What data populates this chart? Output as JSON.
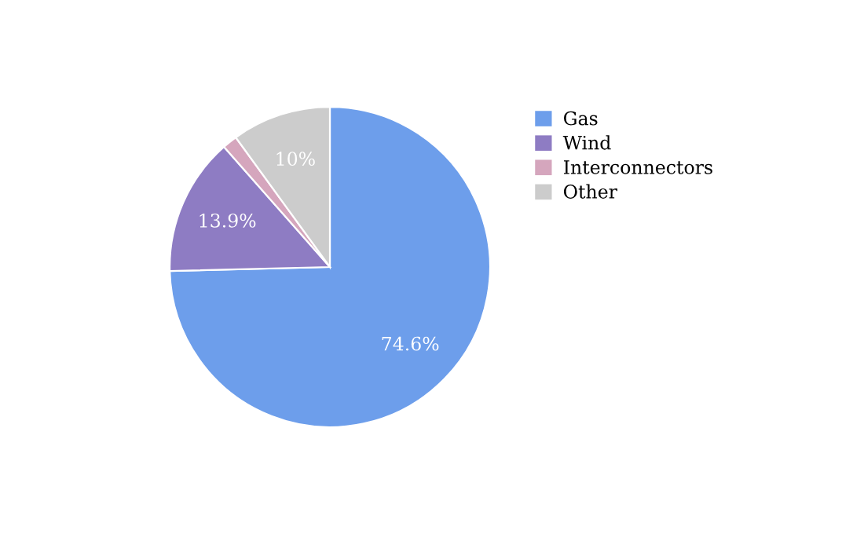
{
  "chart_data": {
    "type": "pie",
    "categories": [
      "Gas",
      "Wind",
      "Interconnectors",
      "Other"
    ],
    "values": [
      74.6,
      13.9,
      1.5,
      10
    ],
    "colors": [
      "#6d9eeb",
      "#8e7cc3",
      "#d5a6bd",
      "#cccccc"
    ],
    "value_labels": [
      "74.6%",
      "13.9%",
      null,
      "10%"
    ],
    "legend": "right"
  }
}
